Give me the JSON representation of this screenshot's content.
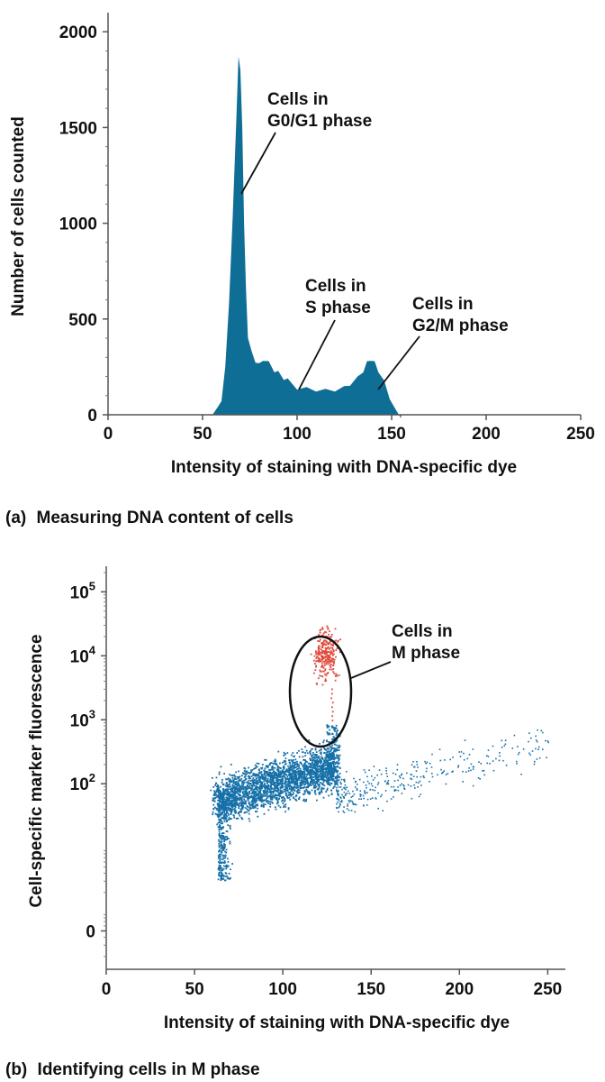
{
  "chart_data": [
    {
      "panel": "a",
      "type": "area",
      "caption_letter": "(a)",
      "caption": "Measuring DNA content of cells",
      "xlabel": "Intensity of staining with DNA-specific dye",
      "ylabel": "Number of cells counted",
      "xlim": [
        0,
        250
      ],
      "ylim": [
        0,
        2100
      ],
      "xticks": [
        "0",
        "50",
        "100",
        "150",
        "200",
        "250"
      ],
      "yticks": [
        "0",
        "500",
        "1000",
        "1500",
        "2000"
      ],
      "grid": false,
      "color": "#0f6e96",
      "x": [
        50,
        55,
        58,
        60,
        62,
        64,
        66,
        68,
        69,
        70,
        71,
        72,
        73,
        74,
        76,
        78,
        80,
        82,
        85,
        88,
        90,
        93,
        95,
        100,
        105,
        110,
        115,
        120,
        125,
        128,
        132,
        135,
        137,
        139,
        141,
        143,
        146,
        149,
        152,
        155
      ],
      "values": [
        0,
        15,
        40,
        90,
        250,
        600,
        1050,
        1600,
        1870,
        1820,
        1500,
        1000,
        650,
        420,
        330,
        290,
        270,
        300,
        280,
        240,
        230,
        200,
        190,
        150,
        145,
        140,
        135,
        140,
        150,
        170,
        200,
        240,
        280,
        300,
        280,
        240,
        180,
        100,
        30,
        0
      ],
      "annotations": [
        {
          "lines": [
            "Cells in",
            "G0/G1 phase"
          ],
          "target": [
            70,
            1150
          ]
        },
        {
          "lines": [
            "Cells in",
            "S phase"
          ],
          "target": [
            103,
            140
          ]
        },
        {
          "lines": [
            "Cells in",
            "G2/M phase"
          ],
          "target": [
            143,
            140
          ]
        }
      ]
    },
    {
      "panel": "b",
      "type": "scatter",
      "caption_letter": "(b)",
      "caption": "Identifying cells in M phase",
      "xlabel": "Intensity of staining with DNA-specific dye",
      "ylabel": "Cell-specific marker fluorescence",
      "xlim": [
        0,
        260
      ],
      "xticks": [
        "0",
        "50",
        "100",
        "150",
        "200",
        "250"
      ],
      "yscale": "log",
      "ylim_log10": [
        -0.9,
        5.4
      ],
      "yticks": [
        {
          "base": "0",
          "exp": ""
        },
        {
          "base": "10",
          "exp": "2"
        },
        {
          "base": "10",
          "exp": "3"
        },
        {
          "base": "10",
          "exp": "4"
        },
        {
          "base": "10",
          "exp": "5"
        }
      ],
      "grid": false,
      "series": [
        {
          "color": "#1670a8",
          "main_cluster": {
            "x_range": [
              62,
              130
            ],
            "log10y_range": [
              0.9,
              2.55
            ]
          },
          "tail": {
            "x_range": [
              130,
              250
            ],
            "log10y_range": [
              1.6,
              2.8
            ]
          }
        },
        {
          "color": "#e04a3c",
          "cluster": {
            "x_center": 124,
            "log10y_center": 4.05,
            "x_spread": 6,
            "log10y_spread": 0.3
          }
        }
      ],
      "annotations": [
        {
          "lines": [
            "Cells in",
            "M phase"
          ],
          "target": [
            124,
            4.05
          ]
        }
      ]
    }
  ]
}
